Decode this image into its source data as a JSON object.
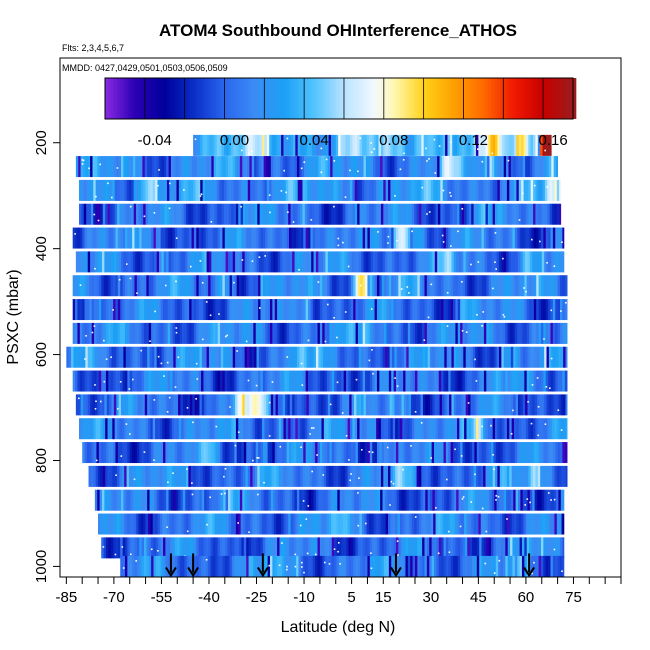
{
  "chart_data": {
    "type": "heatmap",
    "title": "ATOM4 Southbound OHInterference_ATHOS",
    "flights_label": "Flts: 2,3,4,5,6,7",
    "dates_label": "MMDD: 0427,0429,0501,0503,0506,0509",
    "xlabel": "Latitude (deg N)",
    "ylabel": "PSXC (mbar)",
    "xlim": [
      -87,
      90
    ],
    "ylim": [
      1020,
      40
    ],
    "x_ticks": [
      -85,
      -70,
      -55,
      -40,
      -25,
      -10,
      5,
      15,
      30,
      45,
      60,
      75
    ],
    "x_minor_ticks": [
      -80,
      -75,
      -65,
      -60,
      -50,
      -45,
      -35,
      -30,
      -20,
      -15,
      -5,
      0,
      10,
      20,
      25,
      35,
      40,
      50,
      55,
      65,
      70,
      80,
      85,
      90
    ],
    "y_ticks": [
      200,
      400,
      600,
      800,
      1000
    ],
    "colorbar": {
      "min": -0.065,
      "max": 0.17,
      "ticks": [
        -0.04,
        0.0,
        0.04,
        0.08,
        0.12,
        0.16
      ],
      "tick_labels": [
        "-0.04",
        "0.00",
        "0.04",
        "0.08",
        "0.12",
        "0.16"
      ],
      "divisions": [
        -0.045,
        -0.025,
        -0.005,
        0.015,
        0.035,
        0.055,
        0.075,
        0.095,
        0.115,
        0.135,
        0.155
      ],
      "stops": [
        {
          "value": -0.065,
          "color": "#8a2be2"
        },
        {
          "value": -0.05,
          "color": "#2b00b5"
        },
        {
          "value": -0.035,
          "color": "#00009c"
        },
        {
          "value": -0.02,
          "color": "#0a2fc8"
        },
        {
          "value": -0.005,
          "color": "#2a66ee"
        },
        {
          "value": 0.01,
          "color": "#3b8cf5"
        },
        {
          "value": 0.025,
          "color": "#1ca0f5"
        },
        {
          "value": 0.04,
          "color": "#52c3ff"
        },
        {
          "value": 0.055,
          "color": "#b8e3ff"
        },
        {
          "value": 0.07,
          "color": "#f2f8ff"
        },
        {
          "value": 0.08,
          "color": "#fff8b3"
        },
        {
          "value": 0.095,
          "color": "#ffd21a"
        },
        {
          "value": 0.11,
          "color": "#ffa000"
        },
        {
          "value": 0.125,
          "color": "#ff6a00"
        },
        {
          "value": 0.14,
          "color": "#f01a00"
        },
        {
          "value": 0.155,
          "color": "#c80000"
        },
        {
          "value": 0.17,
          "color": "#9b1c1c"
        }
      ]
    },
    "profiles": [
      {
        "pressure": 205,
        "lat_start": -45,
        "lat_end": 68,
        "base_value": 0.035,
        "highlights": [
          {
            "lat": 27,
            "value": 0.07
          },
          {
            "lat": 50,
            "value": 0.08
          },
          {
            "lat": 58,
            "value": 0.095
          },
          {
            "lat": 66,
            "value": 0.15
          },
          {
            "lat": 68,
            "value": 0.16
          }
        ]
      },
      {
        "pressure": 245,
        "lat_start": -82,
        "lat_end": 70,
        "base_value": 0.01,
        "highlights": [
          {
            "lat": 35,
            "value": 0.05
          },
          {
            "lat": 48,
            "value": 0.06
          }
        ]
      },
      {
        "pressure": 290,
        "lat_start": -81,
        "lat_end": 71,
        "base_value": 0.015,
        "highlights": [
          {
            "lat": -60,
            "value": 0.05
          },
          {
            "lat": 68,
            "value": 0.06
          }
        ]
      },
      {
        "pressure": 335,
        "lat_start": -81,
        "lat_end": 71,
        "base_value": 0.0,
        "highlights": [
          {
            "lat": -30,
            "value": 0.03
          },
          {
            "lat": 45,
            "value": 0.035
          }
        ]
      },
      {
        "pressure": 380,
        "lat_start": -83,
        "lat_end": 72,
        "base_value": 0.0,
        "highlights": [
          {
            "lat": 20,
            "value": 0.09
          },
          {
            "lat": 25,
            "value": 0.03
          }
        ]
      },
      {
        "pressure": 425,
        "lat_start": -82,
        "lat_end": 72,
        "base_value": 0.005,
        "highlights": [
          {
            "lat": 35,
            "value": 0.035
          },
          {
            "lat": 60,
            "value": 0.03
          }
        ]
      },
      {
        "pressure": 470,
        "lat_start": -83,
        "lat_end": 73,
        "base_value": 0.005,
        "highlights": [
          {
            "lat": 8,
            "value": 0.1
          },
          {
            "lat": -35,
            "value": 0.03
          }
        ]
      },
      {
        "pressure": 515,
        "lat_start": -83,
        "lat_end": 73,
        "base_value": 0.0,
        "highlights": [
          {
            "lat": -10,
            "value": 0.035
          },
          {
            "lat": 40,
            "value": 0.03
          }
        ]
      },
      {
        "pressure": 560,
        "lat_start": -83,
        "lat_end": 73,
        "base_value": 0.005,
        "highlights": [
          {
            "lat": 10,
            "value": 0.03
          }
        ]
      },
      {
        "pressure": 605,
        "lat_start": -85,
        "lat_end": 73,
        "base_value": 0.005,
        "highlights": [
          {
            "lat": -12,
            "value": 0.04
          },
          {
            "lat": 55,
            "value": 0.03
          }
        ]
      },
      {
        "pressure": 650,
        "lat_start": -83,
        "lat_end": 73,
        "base_value": 0.0,
        "highlights": [
          {
            "lat": 50,
            "value": 0.03
          }
        ]
      },
      {
        "pressure": 695,
        "lat_start": -82,
        "lat_end": 73,
        "base_value": 0.0,
        "highlights": [
          {
            "lat": -30,
            "value": 0.07
          },
          {
            "lat": -25,
            "value": 0.055
          }
        ]
      },
      {
        "pressure": 740,
        "lat_start": -81,
        "lat_end": 73,
        "base_value": 0.005,
        "highlights": [
          {
            "lat": 45,
            "value": 0.05
          }
        ]
      },
      {
        "pressure": 785,
        "lat_start": -80,
        "lat_end": 73,
        "base_value": 0.0,
        "highlights": [
          {
            "lat": -40,
            "value": 0.03
          }
        ]
      },
      {
        "pressure": 830,
        "lat_start": -78,
        "lat_end": 73,
        "base_value": 0.005,
        "highlights": [
          {
            "lat": 20,
            "value": 0.03
          },
          {
            "lat": 62,
            "value": 0.045
          }
        ]
      },
      {
        "pressure": 875,
        "lat_start": -76,
        "lat_end": 72,
        "base_value": 0.0,
        "highlights": [
          {
            "lat": -35,
            "value": 0.035
          }
        ]
      },
      {
        "pressure": 920,
        "lat_start": -75,
        "lat_end": 72,
        "base_value": 0.005,
        "highlights": [
          {
            "lat": 0,
            "value": 0.03
          }
        ]
      },
      {
        "pressure": 965,
        "lat_start": -74,
        "lat_end": 72,
        "base_value": 0.0,
        "highlights": [
          {
            "lat": 60,
            "value": 0.025
          }
        ]
      },
      {
        "pressure": 1000,
        "lat_start": -68,
        "lat_end": 72,
        "base_value": 0.005,
        "highlights": [
          {
            "lat": -20,
            "value": 0.03
          }
        ]
      }
    ],
    "arrows": {
      "pressure": 1000,
      "latitudes": [
        -52,
        -45,
        -23,
        19,
        61
      ]
    }
  }
}
